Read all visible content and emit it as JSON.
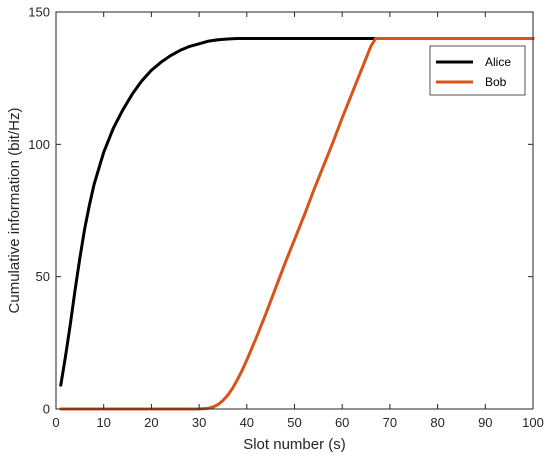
{
  "chart_data": {
    "type": "line",
    "title": "",
    "xlabel": "Slot number (s)",
    "ylabel": "Cumulative information (bit/Hz)",
    "xlim": [
      0,
      100
    ],
    "ylim": [
      0,
      150
    ],
    "xticks": [
      0,
      10,
      20,
      30,
      40,
      50,
      60,
      70,
      80,
      90,
      100
    ],
    "yticks": [
      0,
      50,
      100,
      150
    ],
    "grid": false,
    "legend_position": "top-right",
    "series": [
      {
        "name": "Alice",
        "color": "#000000",
        "x": [
          1,
          2,
          3,
          4,
          5,
          6,
          7,
          8,
          9,
          10,
          12,
          14,
          16,
          18,
          20,
          22,
          24,
          26,
          28,
          30,
          32,
          34,
          36,
          38,
          40,
          42,
          45,
          50,
          55,
          60,
          65,
          70,
          80,
          90,
          100
        ],
        "y": [
          9,
          20,
          32,
          45,
          57,
          68,
          77,
          85,
          91,
          97,
          106,
          113,
          119,
          124,
          128,
          131,
          133.5,
          135.5,
          137,
          138,
          139,
          139.5,
          139.8,
          140,
          140,
          140,
          140,
          140,
          140,
          140,
          140,
          140,
          140,
          140,
          140
        ]
      },
      {
        "name": "Bob",
        "color": "#d95319",
        "x": [
          1,
          10,
          20,
          30,
          32,
          33,
          34,
          35,
          36,
          37,
          38,
          39,
          40,
          42,
          44,
          46,
          48,
          50,
          52,
          54,
          56,
          58,
          60,
          62,
          64,
          66,
          67,
          70,
          80,
          90,
          100
        ],
        "y": [
          0,
          0,
          0,
          0,
          0.3,
          0.8,
          1.7,
          3.2,
          5.2,
          7.8,
          11,
          14.5,
          18.5,
          27,
          36,
          45.5,
          55,
          64,
          73,
          82.5,
          91.5,
          100.5,
          110,
          119,
          128,
          137,
          140,
          140,
          140,
          140,
          140
        ]
      }
    ]
  }
}
